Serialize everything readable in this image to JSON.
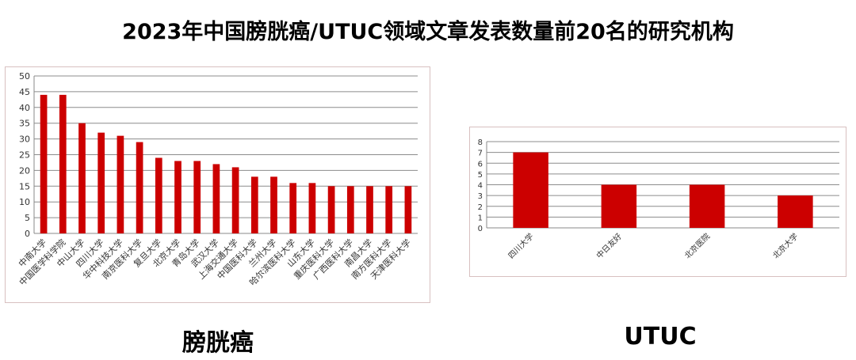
{
  "title": "2023年中国膀胱癌/UTUC领域文章发表数量前20名的研究机构",
  "colors": {
    "bar": "#cc0000",
    "grid": "#8c8c8c",
    "axis": "#888888"
  },
  "charts": {
    "bladder": {
      "caption": "膀胱癌"
    },
    "utuc": {
      "caption": "UTUC"
    }
  },
  "chart_data": [
    {
      "type": "bar",
      "title": "",
      "xlabel": "",
      "ylabel": "",
      "categories": [
        "中南大学",
        "中国医学科学院",
        "中山大学",
        "四川大学",
        "华中科技大学",
        "南京医科大学",
        "复旦大学",
        "北京大学",
        "青岛大学",
        "武汉大学",
        "上海交通大学",
        "中国医科大学",
        "兰州大学",
        "哈尔滨医科大学",
        "山东大学",
        "重庆医科大学",
        "广西医科大学",
        "南昌大学",
        "南方医科大学",
        "天津医科大学"
      ],
      "values": [
        44,
        44,
        35,
        32,
        31,
        29,
        24,
        23,
        23,
        22,
        21,
        18,
        18,
        16,
        16,
        15,
        15,
        15,
        15,
        15
      ],
      "ylim": [
        0,
        50
      ],
      "yticks": [
        0,
        5,
        10,
        15,
        20,
        25,
        30,
        35,
        40,
        45,
        50
      ],
      "grid": true
    },
    {
      "type": "bar",
      "title": "",
      "xlabel": "",
      "ylabel": "",
      "categories": [
        "四川大学",
        "中日友好",
        "北京医院",
        "北京大学"
      ],
      "values": [
        7,
        4,
        4,
        3
      ],
      "ylim": [
        0,
        8
      ],
      "yticks": [
        0,
        1,
        2,
        3,
        4,
        5,
        6,
        7,
        8
      ],
      "grid": true
    }
  ]
}
